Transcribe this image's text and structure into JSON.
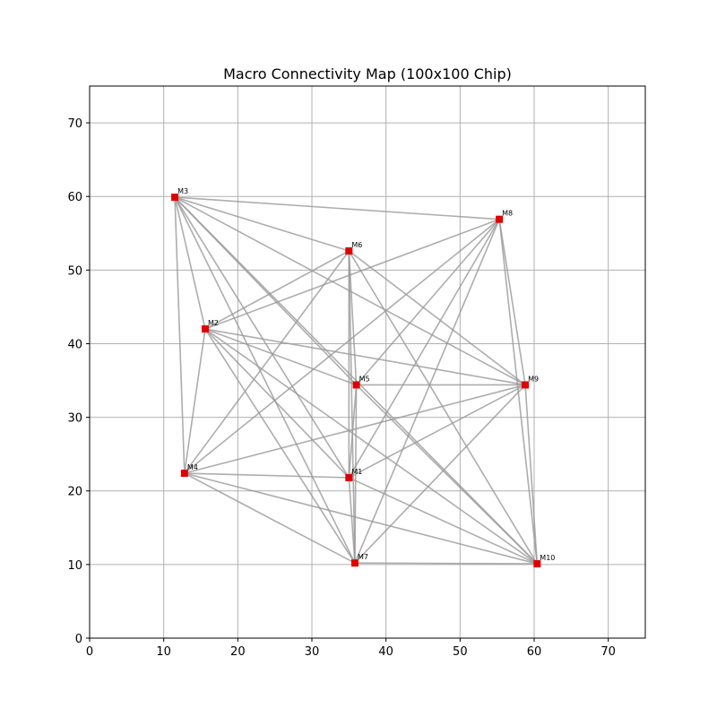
{
  "chart_data": {
    "type": "scatter",
    "title": "Macro Connectivity Map (100x100 Chip)",
    "xlabel": "",
    "ylabel": "",
    "xlim": [
      0,
      75
    ],
    "ylim": [
      0,
      75
    ],
    "xticks": [
      0,
      10,
      20,
      30,
      40,
      50,
      60,
      70
    ],
    "yticks": [
      0,
      10,
      20,
      30,
      40,
      50,
      60,
      70
    ],
    "grid": true,
    "marker_color": "#e00000",
    "edge_color": "#999999",
    "nodes": [
      {
        "name": "M1",
        "x": 35.0,
        "y": 21.8
      },
      {
        "name": "M2",
        "x": 15.6,
        "y": 42.0
      },
      {
        "name": "M3",
        "x": 11.5,
        "y": 59.9
      },
      {
        "name": "M4",
        "x": 12.8,
        "y": 22.4
      },
      {
        "name": "M5",
        "x": 36.0,
        "y": 34.4
      },
      {
        "name": "M6",
        "x": 35.0,
        "y": 52.6
      },
      {
        "name": "M7",
        "x": 35.8,
        "y": 10.2
      },
      {
        "name": "M8",
        "x": 55.3,
        "y": 56.9
      },
      {
        "name": "M9",
        "x": 58.8,
        "y": 34.4
      },
      {
        "name": "M10",
        "x": 60.4,
        "y": 10.1
      }
    ],
    "edges": [
      [
        "M3",
        "M8"
      ],
      [
        "M3",
        "M6"
      ],
      [
        "M3",
        "M2"
      ],
      [
        "M3",
        "M4"
      ],
      [
        "M3",
        "M5"
      ],
      [
        "M3",
        "M9"
      ],
      [
        "M3",
        "M10"
      ],
      [
        "M3",
        "M1"
      ],
      [
        "M3",
        "M7"
      ],
      [
        "M8",
        "M2"
      ],
      [
        "M8",
        "M9"
      ],
      [
        "M8",
        "M10"
      ],
      [
        "M8",
        "M4"
      ],
      [
        "M8",
        "M5"
      ],
      [
        "M8",
        "M1"
      ],
      [
        "M8",
        "M7"
      ],
      [
        "M6",
        "M2"
      ],
      [
        "M6",
        "M5"
      ],
      [
        "M6",
        "M1"
      ],
      [
        "M6",
        "M7"
      ],
      [
        "M6",
        "M9"
      ],
      [
        "M6",
        "M10"
      ],
      [
        "M6",
        "M4"
      ],
      [
        "M2",
        "M4"
      ],
      [
        "M2",
        "M5"
      ],
      [
        "M2",
        "M9"
      ],
      [
        "M2",
        "M1"
      ],
      [
        "M2",
        "M7"
      ],
      [
        "M2",
        "M10"
      ],
      [
        "M5",
        "M9"
      ],
      [
        "M5",
        "M7"
      ],
      [
        "M5",
        "M10"
      ],
      [
        "M5",
        "M1"
      ],
      [
        "M9",
        "M4"
      ],
      [
        "M9",
        "M1"
      ],
      [
        "M9",
        "M7"
      ],
      [
        "M9",
        "M10"
      ],
      [
        "M4",
        "M1"
      ],
      [
        "M4",
        "M7"
      ],
      [
        "M4",
        "M10"
      ],
      [
        "M1",
        "M10"
      ],
      [
        "M7",
        "M10"
      ],
      [
        "M1",
        "M7"
      ]
    ]
  }
}
